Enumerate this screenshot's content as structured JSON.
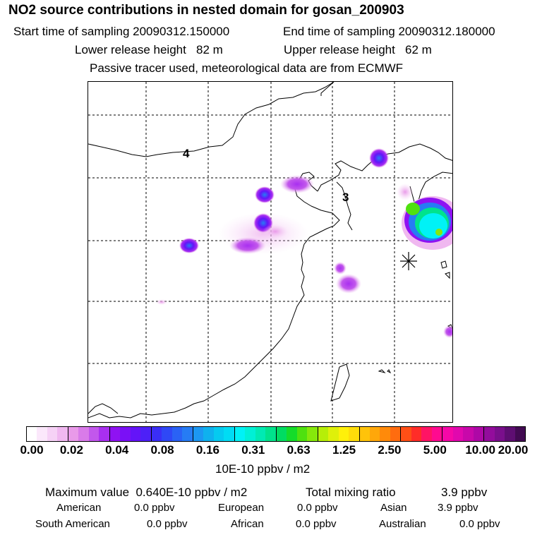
{
  "header": {
    "title": "NO2 source contributions in nested domain for gosan_200903",
    "start_label": "Start time of sampling 20090312.150000",
    "end_label": "End time of sampling 20090312.180000",
    "lower_label": "Lower release height   82 m",
    "upper_label": "Upper release height   62 m",
    "info": "Passive tracer used, meteorological data are from ECMWF"
  },
  "map": {
    "region_labels": [
      "4",
      "3"
    ]
  },
  "colorbar": {
    "ticks": [
      "0.00",
      "0.02",
      "0.04",
      "0.08",
      "0.16",
      "0.31",
      "0.63",
      "1.25",
      "2.50",
      "5.00",
      "10.00",
      "20.00"
    ],
    "units": "10E-10 ppbv / m2",
    "colors": [
      "#ffffff",
      "#fbe8fb",
      "#f6d2f6",
      "#f0b8f0",
      "#e99ae9",
      "#d97be9",
      "#c257ec",
      "#a92ff0",
      "#8f12f2",
      "#7a10f6",
      "#6414f8",
      "#4d20f7",
      "#3a2ef6",
      "#2f48f6",
      "#2a62f5",
      "#267cf4",
      "#1c97f2",
      "#0fb1ee",
      "#05caf0",
      "#00dcf4",
      "#00f2f6",
      "#00f0d6",
      "#00eab3",
      "#00e38c",
      "#00dc62",
      "#15dc2a",
      "#4fe10f",
      "#86e80b",
      "#b6ee08",
      "#dff00a",
      "#fff00a",
      "#ffdd0a",
      "#ffc30a",
      "#ffa70a",
      "#ff8a0a",
      "#ff6c0f",
      "#ff4f16",
      "#ff2d28",
      "#ff1464",
      "#ff0a90",
      "#f608a7",
      "#e108ae",
      "#c808aa",
      "#ae08a6",
      "#930c9c",
      "#7a0f8c",
      "#5e0e72",
      "#420a52"
    ]
  },
  "footer": {
    "max_label": "Maximum value  0.640E-10 ppbv / m2",
    "total_label": "Total mixing ratio",
    "total_value": "3.9 ppbv",
    "american_label": "American",
    "american_value": "0.0 ppbv",
    "european_label": "European",
    "european_value": "0.0 ppbv",
    "asian_label": "Asian",
    "asian_value": "3.9 ppbv",
    "south_american_label": "South American",
    "south_american_value": "0.0 ppbv",
    "african_label": "African",
    "african_value": "0.0 ppbv",
    "australian_label": "Australian",
    "australian_value": "0.0 ppbv"
  }
}
